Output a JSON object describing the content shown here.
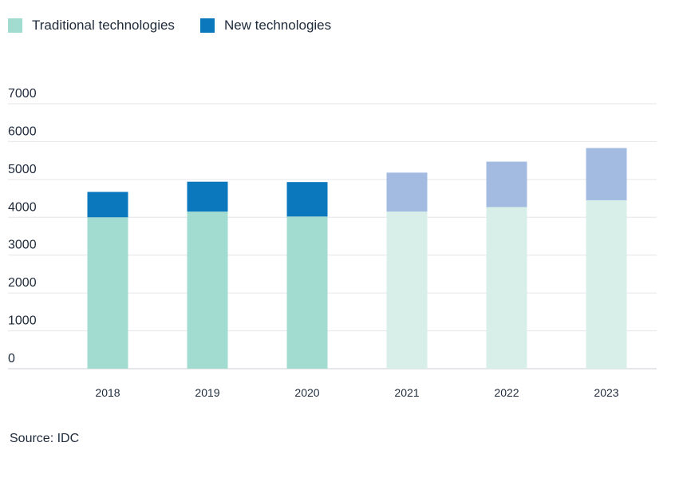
{
  "legend": [
    {
      "label": "Traditional technologies",
      "color": "#a2dbd0"
    },
    {
      "label": "New technologies",
      "color": "#0b77bd"
    }
  ],
  "forecast_colors": {
    "traditional": "#d8eee8",
    "new": "#a3bbe0"
  },
  "chart_data": {
    "type": "bar",
    "stacked": true,
    "categories": [
      "2018",
      "2019",
      "2020",
      "2021",
      "2022",
      "2023"
    ],
    "series": [
      {
        "name": "Traditional technologies",
        "values": [
          4000,
          4150,
          4020,
          4150,
          4270,
          4450
        ]
      },
      {
        "name": "New technologies",
        "values": [
          670,
          790,
          910,
          1030,
          1200,
          1380
        ]
      }
    ],
    "forecast_categories": [
      "2021",
      "2022",
      "2023"
    ],
    "ylim": [
      0,
      7000
    ],
    "yticks": [
      "0",
      "1000",
      "2000",
      "3000",
      "4000",
      "5000",
      "6000",
      "7000"
    ],
    "grid": true,
    "legend_position": "top-left"
  },
  "source": "Source: IDC"
}
